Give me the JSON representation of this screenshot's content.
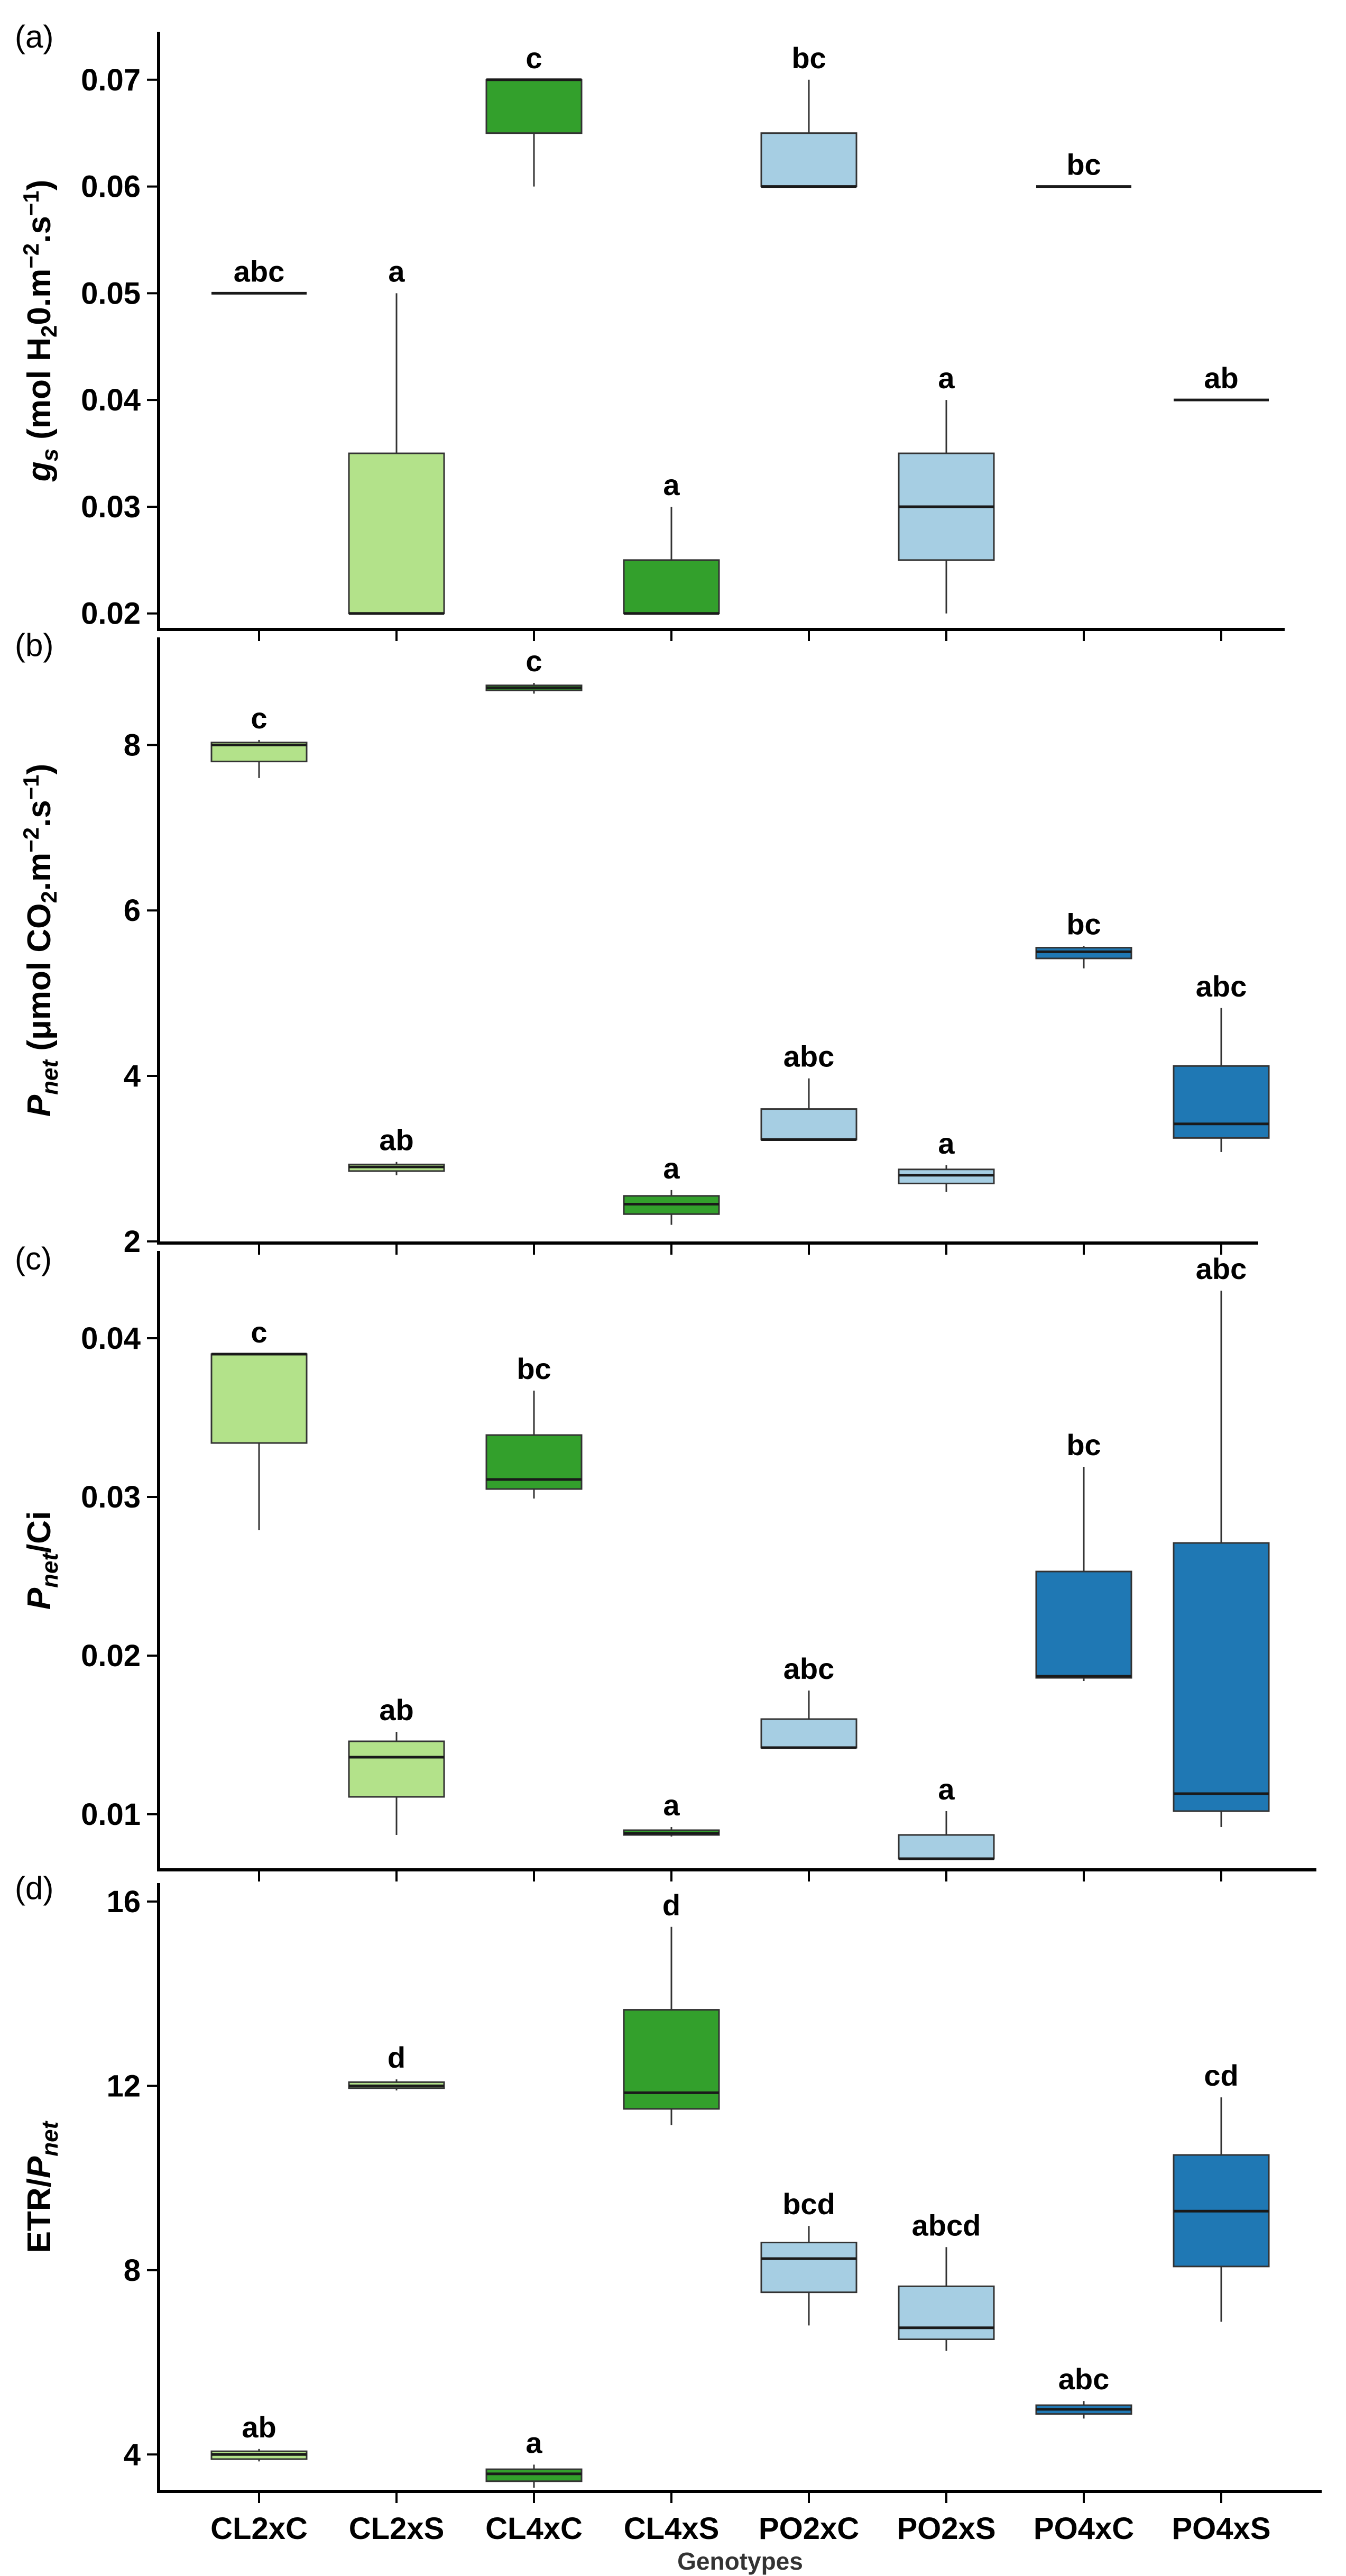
{
  "figure": {
    "xlabel": "Genotypes",
    "categories": [
      "CL2xC",
      "CL2xS",
      "CL4xC",
      "CL4xS",
      "PO2xC",
      "PO2xS",
      "PO4xC",
      "PO4xS"
    ],
    "colors": [
      "#b3e28a",
      "#b3e28a",
      "#33a02c",
      "#33a02c",
      "#a6cee3",
      "#a6cee3",
      "#1f78b4",
      "#1f78b4"
    ],
    "median_color": "#1a1a1a"
  },
  "chart_data": [
    {
      "type": "box",
      "panel": "(a)",
      "ylabel": {
        "pre": "g",
        "sub": "s",
        "post": " (mol H",
        "sub2": "2",
        "post2": "0.m",
        "sup1": "−2",
        "post3": ".s",
        "sup2": "−1",
        "end": ")"
      },
      "ylim": [
        0.0185,
        0.0745
      ],
      "yticks": [
        0.02,
        0.03,
        0.04,
        0.05,
        0.06,
        0.07
      ],
      "ytick_labels": [
        "0.02",
        "0.03",
        "0.04",
        "0.05",
        "0.06",
        "0.07"
      ],
      "boxes": [
        {
          "min": 0.05,
          "q1": 0.05,
          "median": 0.05,
          "q3": 0.05,
          "max": 0.05,
          "label": "abc"
        },
        {
          "min": 0.02,
          "q1": 0.02,
          "median": 0.02,
          "q3": 0.035,
          "max": 0.05,
          "label": "a"
        },
        {
          "min": 0.06,
          "q1": 0.065,
          "median": 0.07,
          "q3": 0.07,
          "max": 0.07,
          "label": "c"
        },
        {
          "min": 0.02,
          "q1": 0.02,
          "median": 0.02,
          "q3": 0.025,
          "max": 0.03,
          "label": "a"
        },
        {
          "min": 0.06,
          "q1": 0.06,
          "median": 0.06,
          "q3": 0.065,
          "max": 0.07,
          "label": "bc"
        },
        {
          "min": 0.02,
          "q1": 0.025,
          "median": 0.03,
          "q3": 0.035,
          "max": 0.04,
          "label": "a"
        },
        {
          "min": 0.06,
          "q1": 0.06,
          "median": 0.06,
          "q3": 0.06,
          "max": 0.06,
          "label": "bc"
        },
        {
          "min": 0.04,
          "q1": 0.04,
          "median": 0.04,
          "q3": 0.04,
          "max": 0.04,
          "label": "ab"
        }
      ]
    },
    {
      "type": "box",
      "panel": "(b)",
      "ylabel": {
        "pre": "P",
        "sub": "net",
        "post": " (μmol CO",
        "sub2": "2",
        "post2": ".m",
        "sup1": "−2",
        "post3": ".s",
        "sup2": "−1",
        "end": ")"
      },
      "ylim": [
        1.98,
        9.3
      ],
      "yticks": [
        2,
        4,
        6,
        8
      ],
      "ytick_labels": [
        "2",
        "4",
        "6",
        "8"
      ],
      "boxes": [
        {
          "min": 7.6,
          "q1": 7.8,
          "median": 8.0,
          "q3": 8.03,
          "max": 8.06,
          "label": "c"
        },
        {
          "min": 2.8,
          "q1": 2.85,
          "median": 2.9,
          "q3": 2.93,
          "max": 2.96,
          "label": "ab"
        },
        {
          "min": 8.62,
          "q1": 8.66,
          "median": 8.69,
          "q3": 8.72,
          "max": 8.75,
          "label": "c"
        },
        {
          "min": 2.2,
          "q1": 2.33,
          "median": 2.45,
          "q3": 2.55,
          "max": 2.62,
          "label": "a"
        },
        {
          "min": 3.23,
          "q1": 3.23,
          "median": 3.23,
          "q3": 3.6,
          "max": 3.97,
          "label": "abc"
        },
        {
          "min": 2.6,
          "q1": 2.7,
          "median": 2.8,
          "q3": 2.87,
          "max": 2.92,
          "label": "a"
        },
        {
          "min": 5.3,
          "q1": 5.42,
          "median": 5.5,
          "q3": 5.55,
          "max": 5.57,
          "label": "bc"
        },
        {
          "min": 3.08,
          "q1": 3.25,
          "median": 3.42,
          "q3": 4.12,
          "max": 4.82,
          "label": "abc"
        }
      ]
    },
    {
      "type": "box",
      "panel": "(c)",
      "ylabel": {
        "pre": "P",
        "sub": "net",
        "post": "/Ci"
      },
      "ylim": [
        0.0065,
        0.0455
      ],
      "yticks": [
        0.01,
        0.02,
        0.03,
        0.04
      ],
      "ytick_labels": [
        "0.01",
        "0.02",
        "0.03",
        "0.04"
      ],
      "boxes": [
        {
          "min": 0.0279,
          "q1": 0.0334,
          "median": 0.039,
          "q3": 0.039,
          "max": 0.039,
          "label": "c"
        },
        {
          "min": 0.0087,
          "q1": 0.0111,
          "median": 0.0136,
          "q3": 0.0146,
          "max": 0.0152,
          "label": "ab"
        },
        {
          "min": 0.0299,
          "q1": 0.0305,
          "median": 0.0311,
          "q3": 0.0339,
          "max": 0.0367,
          "label": "bc"
        },
        {
          "min": 0.0086,
          "q1": 0.0087,
          "median": 0.0088,
          "q3": 0.009,
          "max": 0.0092,
          "label": "a"
        },
        {
          "min": 0.0142,
          "q1": 0.0142,
          "median": 0.0142,
          "q3": 0.016,
          "max": 0.0178,
          "label": "abc"
        },
        {
          "min": 0.0072,
          "q1": 0.0072,
          "median": 0.0072,
          "q3": 0.0087,
          "max": 0.0102,
          "label": "a"
        },
        {
          "min": 0.0184,
          "q1": 0.0186,
          "median": 0.0187,
          "q3": 0.0253,
          "max": 0.0319,
          "label": "bc"
        },
        {
          "min": 0.0092,
          "q1": 0.0102,
          "median": 0.0113,
          "q3": 0.0271,
          "max": 0.043,
          "label": "abc"
        }
      ]
    },
    {
      "type": "box",
      "panel": "(d)",
      "ylabel": {
        "pre": "ETR/",
        "italic": "P",
        "sub": "net"
      },
      "ylim": [
        3.2,
        16.4
      ],
      "yticks": [
        4,
        8,
        12,
        16
      ],
      "ytick_labels": [
        "4",
        "8",
        "12",
        "16"
      ],
      "boxes": [
        {
          "min": 3.85,
          "q1": 3.9,
          "median": 4.0,
          "q3": 4.07,
          "max": 4.12,
          "label": "ab"
        },
        {
          "min": 11.9,
          "q1": 11.95,
          "median": 12.0,
          "q3": 12.08,
          "max": 12.14,
          "label": "d"
        },
        {
          "min": 3.28,
          "q1": 3.42,
          "median": 3.58,
          "q3": 3.68,
          "max": 3.78,
          "label": "a"
        },
        {
          "min": 11.15,
          "q1": 11.5,
          "median": 11.85,
          "q3": 13.65,
          "max": 15.45,
          "label": "d"
        },
        {
          "min": 6.8,
          "q1": 7.52,
          "median": 8.25,
          "q3": 8.6,
          "max": 8.96,
          "label": "bcd"
        },
        {
          "min": 6.25,
          "q1": 6.5,
          "median": 6.75,
          "q3": 7.65,
          "max": 8.5,
          "label": "abcd"
        },
        {
          "min": 4.78,
          "q1": 4.88,
          "median": 4.98,
          "q3": 5.07,
          "max": 5.16,
          "label": "abc"
        },
        {
          "min": 6.88,
          "q1": 8.08,
          "median": 9.28,
          "q3": 10.5,
          "max": 11.75,
          "label": "cd"
        }
      ]
    }
  ]
}
